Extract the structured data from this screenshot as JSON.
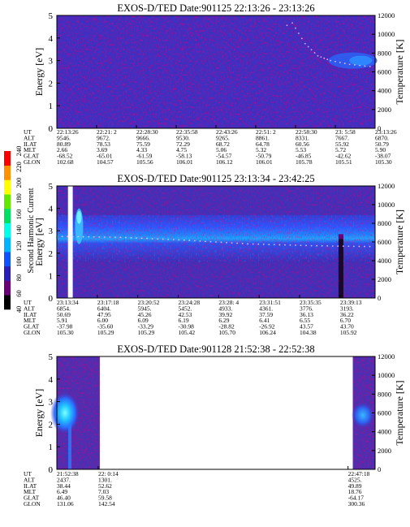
{
  "figure": {
    "colorbar": {
      "label": "Second Harmonic Current",
      "ticks": [
        "40",
        "60",
        "80",
        "100",
        "120",
        "140",
        "160",
        "180",
        "200",
        "220",
        "240"
      ],
      "colors": [
        "#000000",
        "#6a0077",
        "#2a1dbb",
        "#1050ff",
        "#00b4ff",
        "#00ffe8",
        "#00e060",
        "#60e800",
        "#ffff00",
        "#ff9000",
        "#ff0000"
      ]
    },
    "energy_axis": {
      "label": "Energy [eV]",
      "range": [
        0,
        5
      ],
      "ticks": [
        "0",
        "1",
        "2",
        "3",
        "4",
        "5"
      ]
    },
    "temperature_axis": {
      "label": "Temperature [K]",
      "range": [
        0,
        12000
      ],
      "ticks": [
        "0",
        "2000",
        "4000",
        "6000",
        "8000",
        "10000",
        "12000"
      ]
    },
    "orbit_row_labels": [
      "UT",
      "ALT",
      "ILAT",
      "MLT",
      "GLAT",
      "GLON"
    ]
  },
  "chart_data": [
    {
      "type": "heatmap",
      "title": "EXOS-D/TED   Date:901125   22:13:26 - 23:13:26",
      "xlabel": "",
      "ylabel": "Energy [eV]",
      "y2label": "Temperature [K]",
      "ylim": [
        0,
        5
      ],
      "y2lim": [
        0,
        12000
      ],
      "background_level": "low",
      "temperature_trace": [
        {
          "t": 0.0,
          "T": 0
        },
        {
          "t": 0.74,
          "T": 11200
        },
        {
          "t": 0.78,
          "T": 9000
        },
        {
          "t": 0.82,
          "T": 7700
        },
        {
          "t": 0.86,
          "T": 7200
        },
        {
          "t": 0.92,
          "T": 6800
        },
        {
          "t": 1.0,
          "T": 6500
        }
      ],
      "orbit": {
        "UT": [
          "22:13:26",
          "22:21: 2",
          "22:28:30",
          "22:35:58",
          "22:43:26",
          "22:51: 2",
          "22:58:30",
          "23: 5:58",
          "23:13:26"
        ],
        "ALT": [
          "9546.",
          "9672.",
          "9666.",
          "9530.",
          "9265.",
          "8861.",
          "8331.",
          "7667.",
          "6870."
        ],
        "ILAT": [
          "80.89",
          "78.53",
          "75.59",
          "72.29",
          "68.72",
          "64.78",
          "60.56",
          "55.92",
          "50.79"
        ],
        "MLT": [
          "2.66",
          "3.69",
          "4.33",
          "4.75",
          "5.06",
          "5.32",
          "5.53",
          "5.72",
          "5.90"
        ],
        "GLAT": [
          "-68.52",
          "-65.01",
          "-61.59",
          "-58.13",
          "-54.57",
          "-50.79",
          "-46.85",
          "-42.62",
          "-38.07"
        ],
        "GLON": [
          "102.68",
          "104.57",
          "105.56",
          "106.01",
          "106.12",
          "106.01",
          "105.78",
          "105.51",
          "105.30"
        ]
      }
    },
    {
      "type": "heatmap",
      "title": "EXOS-D/TED   Date:901125   23:13:34 - 23:42:25",
      "xlabel": "",
      "ylabel": "Energy [eV]",
      "y2label": "Temperature [K]",
      "ylim": [
        0,
        5
      ],
      "y2lim": [
        0,
        12000
      ],
      "data_gap": [
        0.035,
        0.05
      ],
      "temperature_trace": [
        {
          "t": 0.0,
          "T": 6600
        },
        {
          "t": 0.2,
          "T": 6500
        },
        {
          "t": 0.4,
          "T": 6200
        },
        {
          "t": 0.6,
          "T": 5800
        },
        {
          "t": 0.8,
          "T": 5600
        },
        {
          "t": 1.0,
          "T": 5500
        }
      ],
      "orbit": {
        "UT": [
          "23:13:34",
          "23:17:18",
          "23:20:52",
          "23:24:28",
          "23:28: 4",
          "23:31:51",
          "23:35:35",
          "23:39:13"
        ],
        "ALT": [
          "6854.",
          "6404.",
          "5945.",
          "5452.",
          "4933.",
          "4361.",
          "3776.",
          "3193."
        ],
        "ILAT": [
          "50.69",
          "47.95",
          "45.26",
          "42.53",
          "39.92",
          "37.59",
          "36.13",
          "36.22"
        ],
        "MLT": [
          "5.91",
          "6.00",
          "6.09",
          "6.19",
          "6.29",
          "6.41",
          "6.55",
          "6.70"
        ],
        "GLAT": [
          "-37.98",
          "-35.60",
          "-33.29",
          "-30.98",
          "-28.82",
          "-26.92",
          "43.57",
          "43.70"
        ],
        "GLON": [
          "105.30",
          "105.29",
          "105.29",
          "105.42",
          "105.70",
          "106.24",
          "104.38",
          "105.92"
        ]
      }
    },
    {
      "type": "heatmap",
      "title": "EXOS-D/TED   Date:901128   21:52:38 - 22:52:38",
      "xlabel": "",
      "ylabel": "Energy [eV]",
      "y2label": "Temperature [K]",
      "ylim": [
        0,
        5
      ],
      "y2lim": [
        0,
        12000
      ],
      "data_segments": [
        [
          0.0,
          0.135
        ],
        [
          0.93,
          1.0
        ]
      ],
      "orbit": {
        "UT": [
          "21:52:38",
          "22: 0:14",
          "22:47:18"
        ],
        "ALT": [
          "2437.",
          "1301.",
          "4525."
        ],
        "ILAT": [
          "38.44",
          "52.62",
          "49.89"
        ],
        "MLT": [
          "6.49",
          "7.03",
          "18.76"
        ],
        "GLAT": [
          "46.40",
          "59.58",
          "-64.17"
        ],
        "GLON": [
          "131.06",
          "142.54",
          "300.36"
        ]
      }
    }
  ]
}
